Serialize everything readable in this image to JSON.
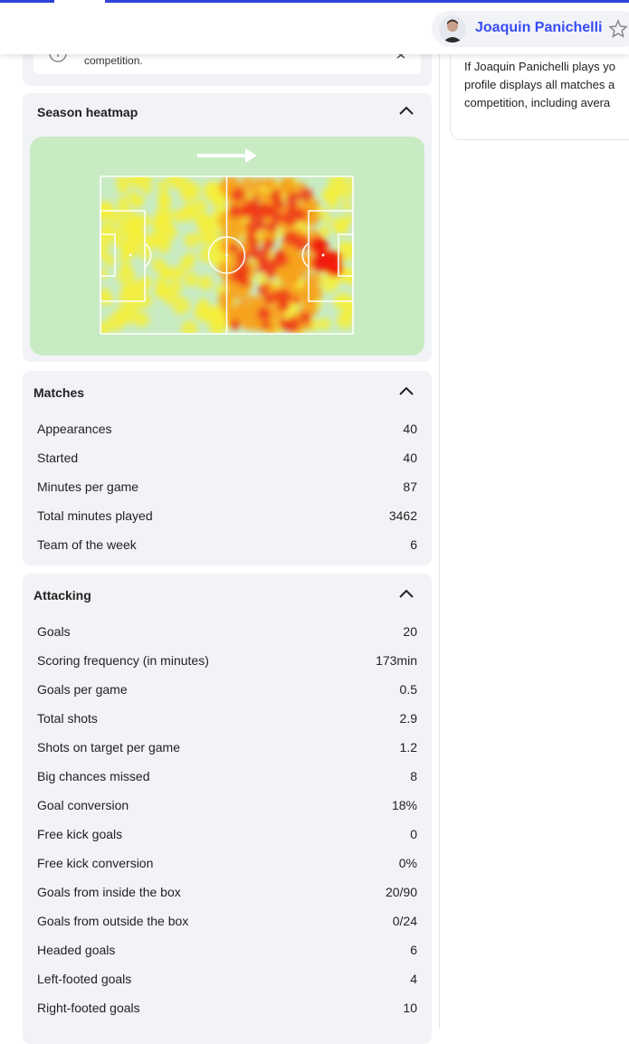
{
  "header": {
    "player_name": "Joaquin Panichelli"
  },
  "notice": {
    "text": "competition."
  },
  "side_info": {
    "lines": [
      "If Joaquin Panichelli plays yo",
      "profile displays all matches a",
      "competition, including avera"
    ]
  },
  "heatmap": {
    "title": "Season heatmap"
  },
  "matches": {
    "title": "Matches",
    "rows": [
      [
        "Appearances",
        "40"
      ],
      [
        "Started",
        "40"
      ],
      [
        "Minutes per game",
        "87"
      ],
      [
        "Total minutes played",
        "3462"
      ],
      [
        "Team of the week",
        "6"
      ]
    ]
  },
  "attacking": {
    "title": "Attacking",
    "rows": [
      [
        "Goals",
        "20"
      ],
      [
        "Scoring frequency (in minutes)",
        "173min"
      ],
      [
        "Goals per game",
        "0.5"
      ],
      [
        "Total shots",
        "2.9"
      ],
      [
        "Shots on target per game",
        "1.2"
      ],
      [
        "Big chances missed",
        "8"
      ],
      [
        "Goal conversion",
        "18%"
      ],
      [
        "Free kick goals",
        "0"
      ],
      [
        "Free kick conversion",
        "0%"
      ],
      [
        "Goals from inside the box",
        "20/90"
      ],
      [
        "Goals from outside the box",
        "0/24"
      ],
      [
        "Headed goals",
        "6"
      ],
      [
        "Left-footed goals",
        "4"
      ],
      [
        "Right-footed goals",
        "10"
      ]
    ]
  }
}
